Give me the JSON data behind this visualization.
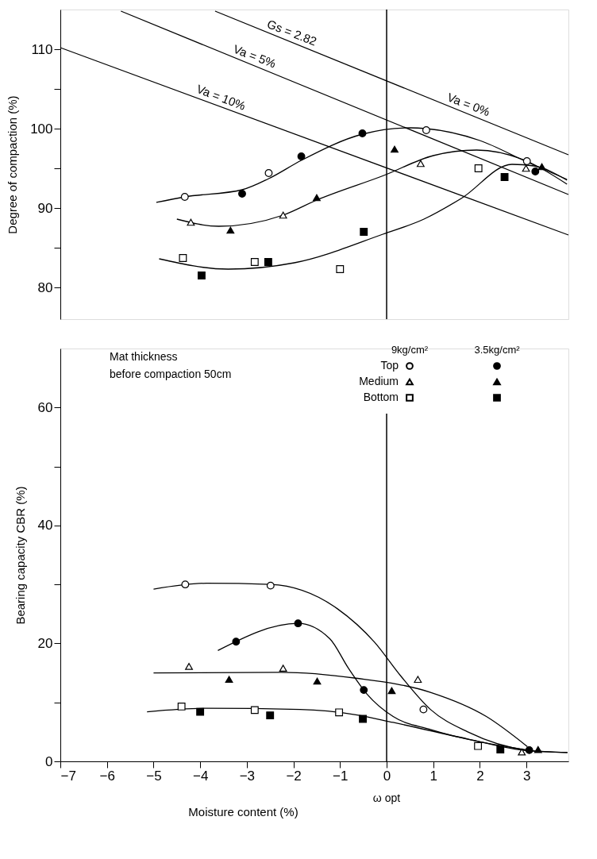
{
  "chart_data": [
    {
      "type": "scatter",
      "ylabel": "Degree of compaction (%)",
      "xlim": [
        -7,
        3.9
      ],
      "ylim": [
        76,
        115
      ],
      "yticks": [
        80,
        {
          "value": 85,
          "label": null
        },
        90,
        {
          "value": 95,
          "label": null
        },
        100,
        {
          "value": 105,
          "label": null
        },
        110
      ],
      "tick_labels": "y",
      "grid": false,
      "legend": false,
      "ref_lines": [
        {
          "axis": "x",
          "value": 0
        }
      ],
      "annotations": [
        {
          "text": "Gs = 2.82",
          "x": -2.1,
          "y": 111.03
        },
        {
          "text": "Va = 5%",
          "x": -2.9,
          "y": 108.06
        },
        {
          "text": "Va = 10%",
          "x": -3.62,
          "y": 102.88
        },
        {
          "text": "Va = 0%",
          "x": 1.69,
          "y": 101.98
        }
      ],
      "series": [
        {
          "type": "line",
          "marker": "none",
          "color": "#000000",
          "x": [
            -3.68,
            3.9
          ],
          "values": [
            114.8,
            96.7
          ]
        },
        {
          "type": "line",
          "marker": "none",
          "color": "#000000",
          "x": [
            -5.7,
            3.9
          ],
          "values": [
            114.8,
            91.7
          ]
        },
        {
          "type": "line",
          "marker": "none",
          "color": "#000000",
          "x": [
            -7,
            3.9
          ],
          "values": [
            110.2,
            86.6
          ]
        },
        {
          "type": "line",
          "marker": "none",
          "color": "#000000",
          "x": [
            -4.94,
            -4.33,
            -3.1,
            -2.53,
            -1.83,
            -0.52,
            0.5,
            0.85,
            2.0,
            3.01,
            3.87
          ],
          "values": [
            90.7,
            91.4,
            92.3,
            93.7,
            96.0,
            99.3,
            100.1,
            100.0,
            98.5,
            95.8,
            93.6
          ]
        },
        {
          "type": "line",
          "marker": "none",
          "color": "#000000",
          "x": [
            -4.5,
            -3.6,
            -2.22,
            -1.5,
            -0.06,
            1.0,
            1.93,
            2.93,
            3.87
          ],
          "values": [
            88.6,
            87.7,
            89.1,
            91.0,
            94.1,
            96.6,
            97.3,
            96.1,
            93.0
          ]
        },
        {
          "type": "line",
          "marker": "none",
          "color": "#000000",
          "x": [
            -4.88,
            -3.4,
            -1.98,
            -0.08,
            0.8,
            1.6,
            2.69,
            3.16,
            3.87
          ],
          "values": [
            83.6,
            82.3,
            83.1,
            86.7,
            88.6,
            91.2,
            95.5,
            95.3,
            93.5
          ]
        },
        {
          "marker": "circle",
          "color": "#ffffff",
          "x": [
            -4.33,
            -2.53,
            0.85,
            3.01
          ],
          "values": [
            91.4,
            94.4,
            99.8,
            95.9
          ]
        },
        {
          "marker": "circle",
          "color": "#000000",
          "x": [
            -3.1,
            -1.83,
            -0.52,
            3.19
          ],
          "values": [
            91.8,
            96.5,
            99.4,
            94.6
          ]
        },
        {
          "marker": "triangle",
          "color": "#ffffff",
          "x": [
            -4.2,
            -2.22,
            0.73,
            2.99
          ],
          "values": [
            88.2,
            89.1,
            95.6,
            95.0
          ]
        },
        {
          "marker": "triangle",
          "color": "#000000",
          "x": [
            -3.35,
            -1.5,
            0.17,
            3.33
          ],
          "values": [
            87.2,
            91.3,
            97.4,
            95.2
          ]
        },
        {
          "marker": "square",
          "color": "#ffffff",
          "x": [
            -4.37,
            -2.83,
            -1.0,
            1.97
          ],
          "values": [
            83.7,
            83.2,
            82.3,
            95.0
          ]
        },
        {
          "marker": "square",
          "color": "#000000",
          "x": [
            -3.97,
            -2.54,
            -0.49,
            2.53
          ],
          "values": [
            81.5,
            83.2,
            87.0,
            93.9
          ]
        }
      ]
    },
    {
      "type": "scatter",
      "xlabel": "Moisture content (%)",
      "ylabel": "Bearing capacity CBR (%)",
      "xlim": [
        -7,
        3.9
      ],
      "ylim": [
        0,
        70
      ],
      "xticks": [
        -7,
        -6,
        -5,
        -4,
        -3,
        -2,
        -1,
        0,
        1,
        2,
        3
      ],
      "yticks": [
        0,
        {
          "value": 10,
          "label": null
        },
        20,
        {
          "value": 30,
          "label": null
        },
        40,
        {
          "value": 50,
          "label": null
        },
        60
      ],
      "grid": false,
      "legend": "top right",
      "ref_lines": [
        {
          "axis": "x",
          "value": 0,
          "label": "ω opt"
        }
      ],
      "annotations": [
        "Mat thickness\nbefore compaction 50cm",
        "9kg/cm²",
        "3.5kg/cm²"
      ],
      "series": [
        {
          "type": "line",
          "marker": "none",
          "color": "#000000",
          "x": [
            -5.0,
            -3.86,
            -2.49,
            -1.06,
            -0.26,
            0.3,
            0.94,
            1.74,
            3.02,
            3.88
          ],
          "values": [
            29.2,
            30.2,
            30.0,
            25.9,
            20.2,
            14.5,
            8.8,
            5.0,
            1.9,
            1.5
          ]
        },
        {
          "type": "line",
          "marker": "none",
          "color": "#000000",
          "x": [
            -3.62,
            -1.9,
            -1.22,
            -0.82,
            -0.42,
            0.14,
            0.94,
            3.02
          ],
          "values": [
            18.8,
            23.4,
            20.8,
            15.8,
            11.4,
            7.6,
            5.4,
            1.9
          ]
        },
        {
          "type": "line",
          "marker": "none",
          "color": "#000000",
          "x": [
            -5.0,
            -2.26,
            -0.66,
            0.94,
            2.14,
            3.02
          ],
          "values": [
            15.0,
            15.1,
            14.1,
            11.7,
            7.6,
            2.5
          ]
        },
        {
          "type": "line",
          "marker": "none",
          "color": "#000000",
          "x": [
            -5.14,
            -3.86,
            -1.86,
            -0.66,
            0.14,
            1.74,
            3.02,
            3.88
          ],
          "values": [
            8.4,
            9.0,
            8.8,
            7.9,
            6.6,
            3.8,
            1.8,
            1.5
          ]
        },
        {
          "name": "Top",
          "marker": "circle",
          "color": "#ffffff",
          "x": [
            -4.32,
            -2.49,
            0.79
          ],
          "values": [
            30.0,
            29.8,
            8.8
          ]
        },
        {
          "marker": "circle",
          "color": "#000000",
          "x": [
            -3.23,
            -1.9,
            -0.49,
            3.06
          ],
          "values": [
            20.3,
            23.4,
            12.1,
            1.9
          ]
        },
        {
          "name": "Medium",
          "marker": "triangle",
          "color": "#ffffff",
          "x": [
            -4.24,
            -2.22,
            0.67,
            2.9
          ],
          "values": [
            16.1,
            15.8,
            13.9,
            1.6
          ]
        },
        {
          "marker": "triangle",
          "color": "#000000",
          "x": [
            -3.38,
            -1.49,
            0.11,
            3.25
          ],
          "values": [
            13.9,
            13.6,
            12.0,
            2.0
          ]
        },
        {
          "name": "Bottom",
          "marker": "square",
          "color": "#ffffff",
          "x": [
            -4.4,
            -2.83,
            -1.02,
            1.96
          ],
          "values": [
            9.3,
            8.7,
            8.3,
            2.6
          ]
        },
        {
          "marker": "square",
          "color": "#000000",
          "x": [
            -4.0,
            -2.5,
            -0.51,
            2.44
          ],
          "values": [
            8.4,
            7.8,
            7.2,
            2.0
          ]
        }
      ]
    }
  ]
}
